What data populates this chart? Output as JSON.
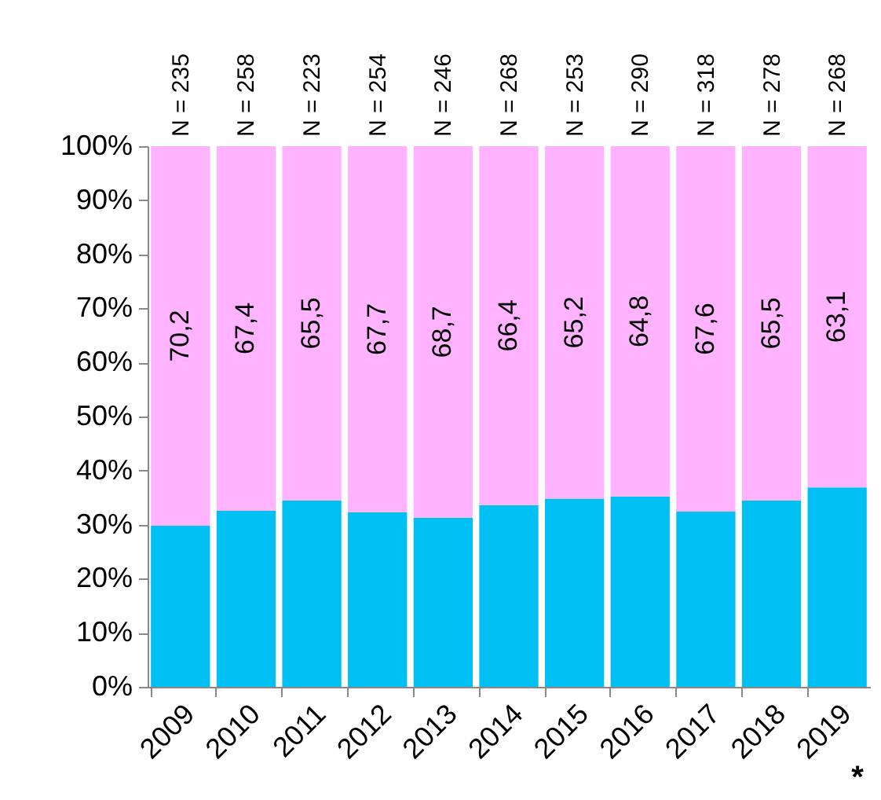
{
  "chart_data": {
    "type": "bar",
    "stacked": true,
    "categories": [
      "2009",
      "2010",
      "2011",
      "2012",
      "2013",
      "2014",
      "2015",
      "2016",
      "2017",
      "2018",
      "2019"
    ],
    "series": [
      {
        "color": "#00bff3",
        "values": [
          29.8,
          32.6,
          34.5,
          32.3,
          31.3,
          33.6,
          34.8,
          35.2,
          32.4,
          34.5,
          36.9
        ]
      },
      {
        "color": "#ffb3ff",
        "values": [
          70.2,
          67.4,
          65.5,
          67.7,
          68.7,
          66.4,
          65.2,
          64.8,
          67.6,
          65.5,
          63.1
        ],
        "value_labels": [
          "70,2",
          "67,4",
          "65,5",
          "67,7",
          "68,7",
          "66,4",
          "65,2",
          "64,8",
          "67,6",
          "65,5",
          "63,1"
        ]
      }
    ],
    "ylim": [
      0,
      100
    ],
    "yticks": [
      {
        "value": 0,
        "label": "0%"
      },
      {
        "value": 10,
        "label": "10%"
      },
      {
        "value": 20,
        "label": "20%"
      },
      {
        "value": 30,
        "label": "30%"
      },
      {
        "value": 40,
        "label": "40%"
      },
      {
        "value": 50,
        "label": "50%"
      },
      {
        "value": 60,
        "label": "60%"
      },
      {
        "value": 70,
        "label": "70%"
      },
      {
        "value": 80,
        "label": "80%"
      },
      {
        "value": 90,
        "label": "90%"
      },
      {
        "value": 100,
        "label": "100%"
      }
    ],
    "grid": false,
    "legend": false,
    "annotations": [
      {
        "text": "N = 235",
        "x": "2009",
        "y": 100
      },
      {
        "text": "N = 258",
        "x": "2010",
        "y": 100
      },
      {
        "text": "N = 223",
        "x": "2011",
        "y": 100
      },
      {
        "text": "N = 254",
        "x": "2012",
        "y": 100
      },
      {
        "text": "N = 246",
        "x": "2013",
        "y": 100
      },
      {
        "text": "N = 268",
        "x": "2014",
        "y": 100
      },
      {
        "text": "N = 253",
        "x": "2015",
        "y": 100
      },
      {
        "text": "N = 290",
        "x": "2016",
        "y": 100
      },
      {
        "text": "N = 318",
        "x": "2017",
        "y": 100
      },
      {
        "text": "N = 278",
        "x": "2018",
        "y": 100
      },
      {
        "text": "N = 268",
        "x": "2019",
        "y": 100
      },
      "*"
    ]
  }
}
